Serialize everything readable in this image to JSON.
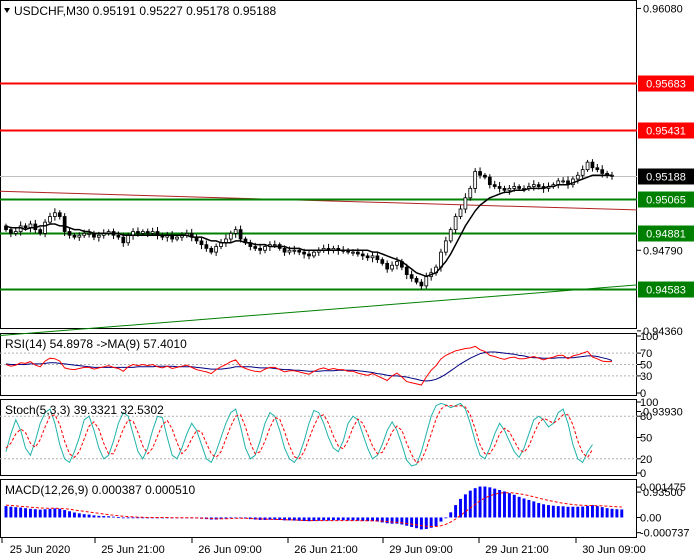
{
  "chart_data": {
    "type": "candlestick",
    "symbol_line": "USDCHF,M30  0.95191 0.95227 0.95178 0.95188",
    "main": {
      "ylim": [
        0.9437,
        0.96125
      ],
      "tick_labels": [
        "0.96080",
        "0.94790",
        "0.94360",
        "0.93930",
        "0.93500"
      ],
      "tick_values": [
        0.9608,
        0.9479,
        0.9436,
        0.9393,
        0.935
      ],
      "levels": [
        {
          "label": "0.95683",
          "value": 0.95683,
          "color": "#ff0000"
        },
        {
          "label": "0.95431",
          "value": 0.95431,
          "color": "#ff0000"
        },
        {
          "label": "0.95188",
          "value": 0.95188,
          "color": "#000000"
        },
        {
          "label": "0.95065",
          "value": 0.95065,
          "color": "#008000"
        },
        {
          "label": "0.94881",
          "value": 0.94881,
          "color": "#008000"
        },
        {
          "label": "0.94583",
          "value": 0.94583,
          "color": "#008000"
        }
      ],
      "close": [
        0.949,
        0.9488,
        0.9489,
        0.9492,
        0.9491,
        0.9493,
        0.949,
        0.9488,
        0.9494,
        0.9497,
        0.9499,
        0.9497,
        0.9489,
        0.9487,
        0.9486,
        0.9487,
        0.9488,
        0.9488,
        0.9486,
        0.9487,
        0.9488,
        0.9489,
        0.9487,
        0.9486,
        0.9483,
        0.9487,
        0.9489,
        0.9488,
        0.9489,
        0.9488,
        0.9489,
        0.9487,
        0.9486,
        0.9487,
        0.9485,
        0.9486,
        0.9487,
        0.9488,
        0.9486,
        0.9484,
        0.9482,
        0.948,
        0.9478,
        0.9481,
        0.9483,
        0.9485,
        0.9488,
        0.949,
        0.9485,
        0.9483,
        0.9481,
        0.948,
        0.9479,
        0.9481,
        0.9482,
        0.9482,
        0.948,
        0.9478,
        0.9479,
        0.9479,
        0.9478,
        0.9477,
        0.9476,
        0.9478,
        0.9479,
        0.948,
        0.9479,
        0.948,
        0.9479,
        0.9479,
        0.9478,
        0.9478,
        0.9477,
        0.9476,
        0.9475,
        0.9476,
        0.9474,
        0.9472,
        0.9469,
        0.9471,
        0.9473,
        0.947,
        0.9466,
        0.9464,
        0.9462,
        0.946,
        0.9465,
        0.9467,
        0.947,
        0.9478,
        0.9484,
        0.949,
        0.9497,
        0.9501,
        0.9507,
        0.9512,
        0.9521,
        0.9519,
        0.9518,
        0.9514,
        0.9513,
        0.9512,
        0.9511,
        0.9512,
        0.9513,
        0.9512,
        0.9512,
        0.9513,
        0.9514,
        0.9513,
        0.9512,
        0.9513,
        0.9514,
        0.9516,
        0.9516,
        0.9514,
        0.9517,
        0.9519,
        0.9522,
        0.9526,
        0.9523,
        0.9522,
        0.952,
        0.9519,
        0.9519
      ],
      "ma": [
        0.9492,
        0.9491,
        0.9491,
        0.9491,
        0.949,
        0.9491,
        0.9491,
        0.9492,
        0.9492,
        0.9493,
        0.9493,
        0.9492,
        0.9492,
        0.9491,
        0.949,
        0.949,
        0.9489,
        0.9489,
        0.9488,
        0.9488,
        0.9488,
        0.9488,
        0.9488,
        0.9488,
        0.9487,
        0.9487,
        0.9487,
        0.9487,
        0.9487,
        0.9487,
        0.9487,
        0.9487,
        0.9487,
        0.9487,
        0.9487,
        0.9487,
        0.9487,
        0.9487,
        0.9486,
        0.9486,
        0.9486,
        0.9485,
        0.9484,
        0.9484,
        0.9483,
        0.9483,
        0.9483,
        0.9484,
        0.9484,
        0.9483,
        0.9483,
        0.9482,
        0.9482,
        0.9482,
        0.9481,
        0.9481,
        0.9481,
        0.9481,
        0.948,
        0.948,
        0.948,
        0.9479,
        0.9479,
        0.9479,
        0.9479,
        0.9479,
        0.9479,
        0.9479,
        0.9479,
        0.9479,
        0.9479,
        0.9479,
        0.9479,
        0.9479,
        0.9479,
        0.9478,
        0.9478,
        0.9477,
        0.9476,
        0.9475,
        0.9474,
        0.9473,
        0.9471,
        0.9469,
        0.9467,
        0.9466,
        0.9465,
        0.9466,
        0.9467,
        0.947,
        0.9473,
        0.9477,
        0.9482,
        0.9487,
        0.9492,
        0.9496,
        0.95,
        0.9503,
        0.9505,
        0.9507,
        0.9508,
        0.9509,
        0.951,
        0.951,
        0.9511,
        0.9511,
        0.9511,
        0.9512,
        0.9512,
        0.9512,
        0.9512,
        0.9513,
        0.9513,
        0.9514,
        0.9514,
        0.9514,
        0.9515,
        0.9516,
        0.9517,
        0.9518,
        0.9519,
        0.9519,
        0.9519,
        0.9519,
        0.9519
      ]
    },
    "rsi": {
      "label": "RSI(14) 54.8978  ->MA(9) 57.4010",
      "ylim": [
        0,
        100
      ],
      "tick_labels": [
        "100",
        "70",
        "50",
        "30",
        "0"
      ],
      "tick_values": [
        100,
        70,
        50,
        30,
        0
      ],
      "values": [
        50,
        47,
        49,
        53,
        52,
        55,
        49,
        46,
        56,
        61,
        60,
        56,
        44,
        42,
        41,
        43,
        45,
        45,
        42,
        44,
        46,
        48,
        45,
        43,
        38,
        46,
        50,
        48,
        50,
        48,
        50,
        46,
        44,
        47,
        43,
        45,
        47,
        49,
        45,
        41,
        39,
        37,
        34,
        41,
        46,
        50,
        55,
        58,
        47,
        43,
        40,
        38,
        37,
        42,
        45,
        45,
        41,
        37,
        39,
        39,
        37,
        35,
        33,
        38,
        42,
        44,
        41,
        43,
        41,
        41,
        38,
        38,
        35,
        33,
        31,
        34,
        30,
        26,
        22,
        30,
        35,
        28,
        20,
        18,
        16,
        14,
        28,
        40,
        48,
        60,
        66,
        70,
        74,
        76,
        78,
        79,
        82,
        76,
        73,
        66,
        64,
        61,
        59,
        62,
        63,
        60,
        60,
        62,
        64,
        61,
        58,
        61,
        63,
        66,
        66,
        60,
        65,
        67,
        70,
        73,
        63,
        60,
        56,
        55,
        55
      ],
      "ma": [
        51,
        50,
        50,
        50,
        50,
        51,
        51,
        51,
        52,
        53,
        53,
        52,
        51,
        50,
        49,
        48,
        47,
        46,
        45,
        45,
        45,
        45,
        45,
        45,
        45,
        45,
        45,
        46,
        46,
        46,
        46,
        47,
        47,
        47,
        47,
        46,
        46,
        46,
        46,
        45,
        44,
        43,
        42,
        42,
        42,
        43,
        44,
        46,
        46,
        46,
        46,
        45,
        44,
        44,
        44,
        43,
        42,
        41,
        41,
        40,
        40,
        39,
        38,
        38,
        38,
        39,
        39,
        39,
        40,
        40,
        40,
        40,
        39,
        38,
        37,
        36,
        34,
        33,
        31,
        30,
        30,
        29,
        28,
        26,
        24,
        22,
        21,
        22,
        24,
        28,
        33,
        39,
        45,
        51,
        56,
        61,
        65,
        69,
        71,
        72,
        72,
        71,
        70,
        69,
        68,
        66,
        65,
        63,
        62,
        62,
        61,
        61,
        61,
        62,
        62,
        62,
        62,
        63,
        64,
        65,
        65,
        64,
        62,
        60,
        57
      ],
      "levels": [
        70,
        50,
        30
      ]
    },
    "stoch": {
      "label": "Stoch(5,3,3) 39.3321 32.5302",
      "ylim": [
        0,
        100
      ],
      "tick_labels": [
        "100",
        "80",
        "50",
        "20",
        "0"
      ],
      "tick_values": [
        100,
        80,
        50,
        20,
        0
      ],
      "main": [
        30,
        55,
        75,
        60,
        35,
        25,
        45,
        70,
        85,
        90,
        70,
        40,
        20,
        15,
        30,
        50,
        75,
        80,
        60,
        35,
        20,
        25,
        45,
        70,
        85,
        80,
        55,
        30,
        20,
        35,
        60,
        80,
        78,
        50,
        25,
        20,
        35,
        55,
        70,
        60,
        40,
        20,
        15,
        30,
        50,
        70,
        85,
        90,
        65,
        35,
        20,
        25,
        45,
        70,
        85,
        80,
        60,
        35,
        20,
        15,
        25,
        45,
        70,
        88,
        85,
        70,
        50,
        35,
        30,
        45,
        70,
        80,
        75,
        55,
        35,
        20,
        25,
        40,
        60,
        72,
        60,
        40,
        18,
        10,
        12,
        30,
        55,
        80,
        95,
        98,
        96,
        92,
        95,
        98,
        90,
        70,
        45,
        25,
        20,
        35,
        55,
        70,
        60,
        45,
        30,
        22,
        35,
        55,
        75,
        80,
        75,
        65,
        70,
        85,
        90,
        70,
        40,
        20,
        15,
        30,
        40
      ],
      "signal": [
        35,
        42,
        55,
        62,
        57,
        42,
        36,
        47,
        65,
        80,
        82,
        68,
        45,
        27,
        22,
        30,
        48,
        66,
        72,
        62,
        42,
        27,
        27,
        44,
        62,
        75,
        73,
        57,
        38,
        27,
        35,
        52,
        68,
        74,
        62,
        43,
        27,
        34,
        48,
        60,
        58,
        42,
        27,
        22,
        30,
        48,
        66,
        80,
        82,
        65,
        42,
        27,
        30,
        45,
        64,
        78,
        76,
        58,
        38,
        23,
        20,
        30,
        48,
        66,
        80,
        82,
        70,
        52,
        38,
        34,
        46,
        64,
        76,
        70,
        55,
        38,
        27,
        29,
        42,
        58,
        66,
        60,
        42,
        26,
        14,
        18,
        34,
        55,
        76,
        90,
        95,
        95,
        94,
        95,
        93,
        82,
        62,
        40,
        27,
        27,
        38,
        55,
        63,
        58,
        45,
        33,
        29,
        38,
        55,
        70,
        77,
        74,
        70,
        75,
        82,
        82,
        68,
        45,
        28,
        22,
        33
      ]
    },
    "macd": {
      "label": "MACD(12,26,9) 0.000387 0.000510",
      "ylim": [
        -0.00085,
        0.00172
      ],
      "tick_labels": [
        "0.001475",
        "0.00",
        "-0.000737"
      ],
      "tick_values": [
        0.001475,
        0.0,
        -0.000737
      ],
      "hist": [
        0.00055,
        0.00052,
        0.0005,
        0.00048,
        0.00045,
        0.00042,
        0.0004,
        0.00038,
        0.0004,
        0.00042,
        0.00044,
        0.00042,
        0.00036,
        0.0003,
        0.00024,
        0.0002,
        0.00016,
        0.00014,
        0.0001,
        8e-05,
        7e-05,
        6e-05,
        4e-05,
        2e-05,
        -2e-05,
        -2e-05,
        -1e-05,
        0.0,
        0.0,
        0.0,
        0.0,
        0.0,
        -1e-05,
        -1e-05,
        -2e-05,
        -2e-05,
        -2e-05,
        -1e-05,
        -2e-05,
        -4e-05,
        -6e-05,
        -8e-05,
        -0.0001,
        -0.0001,
        -8e-05,
        -6e-05,
        -2e-05,
        0.0,
        -2e-05,
        -5e-05,
        -8e-05,
        -0.0001,
        -0.00012,
        -0.00012,
        -0.00011,
        -0.00011,
        -0.00012,
        -0.00014,
        -0.00014,
        -0.00015,
        -0.00016,
        -0.00017,
        -0.00018,
        -0.00017,
        -0.00016,
        -0.00015,
        -0.00015,
        -0.00014,
        -0.00014,
        -0.00014,
        -0.00015,
        -0.00015,
        -0.00016,
        -0.00017,
        -0.00018,
        -0.00018,
        -0.0002,
        -0.00024,
        -0.00028,
        -0.0003,
        -0.0003,
        -0.00034,
        -0.0004,
        -0.00046,
        -0.00052,
        -0.00058,
        -0.00056,
        -0.0005,
        -0.00042,
        -0.0002,
        0.0,
        0.00025,
        0.0006,
        0.0009,
        0.00112,
        0.0013,
        0.00142,
        0.0015,
        0.0015,
        0.00146,
        0.0014,
        0.00133,
        0.00126,
        0.00118,
        0.0011,
        0.001,
        0.00092,
        0.00085,
        0.00078,
        0.0007,
        0.00064,
        0.0006,
        0.00057,
        0.00055,
        0.00054,
        0.00052,
        0.00052,
        0.00052,
        0.00053,
        0.00056,
        0.0006,
        0.00055,
        0.0005,
        0.00045,
        0.00042,
        0.0004,
        0.00039
      ],
      "signal": [
        0.0006,
        0.00058,
        0.00056,
        0.00054,
        0.00052,
        0.0005,
        0.00048,
        0.00046,
        0.00045,
        0.00045,
        0.00045,
        0.00044,
        0.00042,
        0.0004,
        0.00036,
        0.00033,
        0.0003,
        0.00026,
        0.00023,
        0.0002,
        0.00017,
        0.00014,
        0.00011,
        8e-05,
        6e-05,
        4e-05,
        3e-05,
        2e-05,
        1e-05,
        0.0,
        0.0,
        0.0,
        0.0,
        0.0,
        -1e-05,
        -1e-05,
        -1e-05,
        -1e-05,
        -1e-05,
        -2e-05,
        -3e-05,
        -4e-05,
        -5e-05,
        -6e-05,
        -6e-05,
        -6e-05,
        -5e-05,
        -4e-05,
        -4e-05,
        -4e-05,
        -5e-05,
        -6e-05,
        -7e-05,
        -8e-05,
        -9e-05,
        -0.0001,
        -0.0001,
        -0.00011,
        -0.00012,
        -0.00012,
        -0.00013,
        -0.00014,
        -0.00015,
        -0.00015,
        -0.00015,
        -0.00015,
        -0.00015,
        -0.00015,
        -0.00015,
        -0.00015,
        -0.00015,
        -0.00015,
        -0.00015,
        -0.00016,
        -0.00016,
        -0.00016,
        -0.00017,
        -0.00018,
        -0.0002,
        -0.00022,
        -0.00024,
        -0.00026,
        -0.00029,
        -0.00032,
        -0.00036,
        -0.0004,
        -0.00043,
        -0.00044,
        -0.00044,
        -0.0004,
        -0.00033,
        -0.00022,
        -8e-05,
        0.0001,
        0.00028,
        0.00046,
        0.00064,
        0.00081,
        0.00095,
        0.00105,
        0.00113,
        0.00118,
        0.0012,
        0.0012,
        0.00118,
        0.00115,
        0.00111,
        0.00106,
        0.001,
        0.00094,
        0.00088,
        0.00083,
        0.00078,
        0.00073,
        0.00069,
        0.00066,
        0.00063,
        0.0006,
        0.00059,
        0.00058,
        0.00058,
        0.00057,
        0.00056,
        0.00055,
        0.00053,
        0.00052,
        0.00051
      ]
    },
    "x_tick_labels": [
      "25 Jun 2020",
      "25 Jun 21:00",
      "26 Jun 09:00",
      "26 Jun 21:00",
      "29 Jun 09:00",
      "29 Jun 21:00",
      "30 Jun 09:00"
    ],
    "colors": {
      "bull": "#ffffff",
      "bear": "#000000",
      "candle_outline": "#000000",
      "ma": "#000000",
      "rsi": "#ff0000",
      "rsi_ma": "#000080",
      "stoch_main": "#20b2aa",
      "stoch_signal": "#ff0000",
      "macd_hist": "#0000ff",
      "macd_signal": "#ff0000",
      "sup_trend": "#008000",
      "res_trend": "#b22222"
    }
  }
}
